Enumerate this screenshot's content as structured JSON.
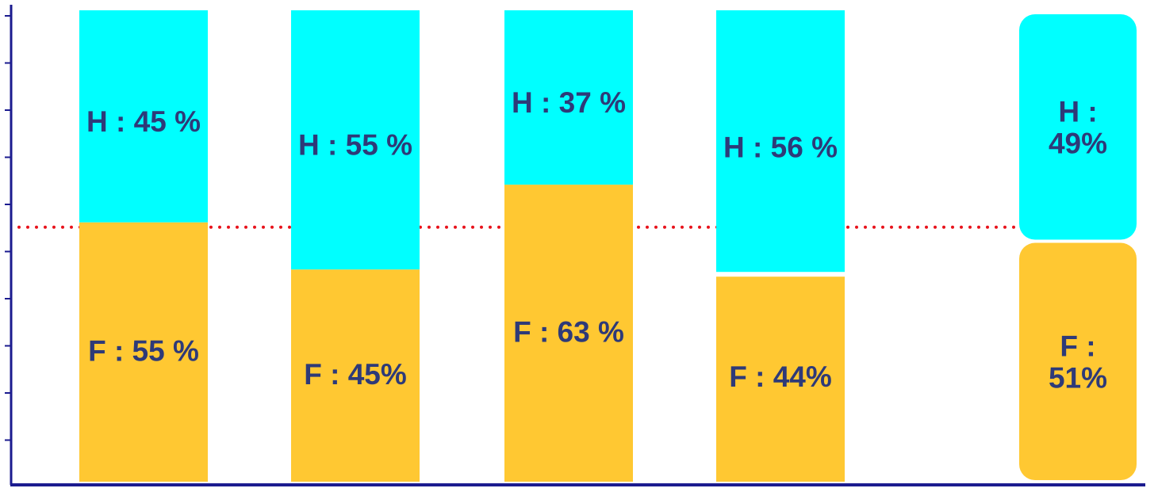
{
  "chart_data": {
    "type": "bar",
    "stacked": true,
    "title": "",
    "xlabel": "",
    "ylabel": "",
    "ylim": [
      0,
      100
    ],
    "grid": false,
    "legend": "none",
    "reference_line": {
      "value": 54,
      "color": "#e8121b",
      "style": "dotted"
    },
    "series": [
      {
        "key": "F",
        "color": "#ffc832",
        "values": [
          55,
          45,
          63,
          44,
          51
        ],
        "labels": [
          "F : 55 %",
          "F : 45%",
          "F : 63 %",
          "F : 44%",
          "F :\n51%"
        ]
      },
      {
        "key": "H",
        "color": "#00ffff",
        "values": [
          45,
          55,
          37,
          56,
          49
        ],
        "labels": [
          "H : 45 %",
          "H : 55 %",
          "H : 37 %",
          "H : 56 %",
          "H :\n49%"
        ]
      }
    ],
    "highlighted_bar": 4
  },
  "colors": {
    "axis": "#1b1b8f",
    "label_text": "#2e3a78"
  }
}
